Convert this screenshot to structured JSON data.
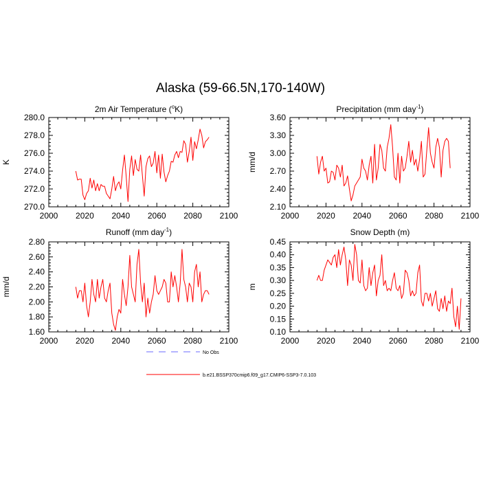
{
  "title": "Alaska (59-66.5N,170-140W)",
  "legend": {
    "obs_label": "No Obs",
    "model_label": "b.e21.BSSP370cmip6.f09_g17.CMIP6-SSP3-7.0.103",
    "obs_color": "#6a6aff",
    "model_color": "#ff0000"
  },
  "chart_data": [
    {
      "type": "line",
      "title_main": "2m Air Temperature (",
      "title_sup": "o",
      "title_tail": "K)",
      "ylabel": "K",
      "xlim": [
        2000,
        2100
      ],
      "ylim": [
        270,
        280
      ],
      "xticks": [
        "2000",
        "2020",
        "2040",
        "2060",
        "2080",
        "2100"
      ],
      "yticks": [
        "270.0",
        "272.0",
        "274.0",
        "276.0",
        "278.0",
        "280.0"
      ],
      "x_start": 2015,
      "series": [
        {
          "name": "b.e21.BSSP370cmip6.f09_g17.CMIP6-SSP3-7.0.103",
          "color": "#ff0000",
          "values": [
            274.0,
            273.0,
            273.1,
            273.1,
            271.3,
            270.8,
            271.5,
            271.8,
            273.2,
            272.1,
            273.0,
            271.8,
            272.6,
            271.8,
            272.5,
            272.3,
            272.3,
            271.5,
            271.2,
            270.9,
            272.0,
            273.4,
            271.8,
            272.5,
            272.8,
            272.0,
            274.1,
            275.8,
            273.4,
            270.6,
            274.2,
            275.7,
            273.5,
            275.3,
            274.2,
            274.0,
            275.8,
            273.5,
            271.2,
            274.5,
            275.4,
            275.7,
            274.5,
            274.9,
            276.2,
            273.8,
            275.8,
            273.2,
            275.9,
            273.9,
            272.8,
            273.5,
            274.0,
            275.1,
            275.0,
            275.8,
            276.2,
            275.5,
            276.2,
            276.1,
            277.4,
            277.0,
            275.0,
            276.2,
            277.8,
            275.2,
            277.3,
            276.5,
            277.5,
            278.7,
            278.0,
            276.6,
            277.3,
            277.5,
            277.8
          ]
        }
      ]
    },
    {
      "type": "line",
      "title_main": "Precipitation (mm day",
      "title_sup": "-1",
      "title_tail": ")",
      "ylabel": "mm/d",
      "xlim": [
        2000,
        2100
      ],
      "ylim": [
        2.1,
        3.6
      ],
      "xticks": [
        "2000",
        "2020",
        "2040",
        "2060",
        "2080",
        "2100"
      ],
      "yticks": [
        "2.10",
        "2.40",
        "2.70",
        "3.00",
        "3.30",
        "3.60"
      ],
      "x_start": 2015,
      "series": [
        {
          "name": "b.e21.BSSP370cmip6.f09_g17.CMIP6-SSP3-7.0.103",
          "color": "#ff0000",
          "values": [
            2.95,
            2.65,
            2.85,
            2.95,
            2.7,
            2.75,
            2.5,
            2.52,
            2.7,
            2.68,
            2.55,
            2.8,
            2.75,
            2.6,
            2.8,
            2.45,
            2.5,
            2.62,
            2.4,
            2.2,
            2.3,
            2.45,
            2.5,
            2.55,
            2.6,
            2.9,
            2.75,
            2.7,
            2.55,
            2.8,
            2.95,
            2.5,
            3.15,
            2.55,
            2.75,
            3.15,
            3.05,
            2.75,
            2.7,
            3.1,
            3.25,
            3.48,
            3.1,
            2.6,
            2.55,
            3.0,
            2.5,
            2.95,
            2.7,
            2.75,
            2.95,
            3.2,
            2.85,
            3.05,
            2.8,
            2.9,
            2.7,
            2.9,
            3.2,
            2.6,
            2.65,
            3.05,
            3.43,
            3.0,
            2.85,
            2.75,
            3.1,
            3.25,
            3.1,
            2.6,
            3.05,
            3.2,
            3.25,
            3.2,
            2.75
          ]
        }
      ]
    },
    {
      "type": "line",
      "title_main": "Runoff (mm day",
      "title_sup": "-1",
      "title_tail": ")",
      "ylabel": "mm/d",
      "xlim": [
        2000,
        2100
      ],
      "ylim": [
        1.6,
        2.8
      ],
      "xticks": [
        "2000",
        "2020",
        "2040",
        "2060",
        "2080",
        "2100"
      ],
      "yticks": [
        "1.60",
        "1.80",
        "2.00",
        "2.20",
        "2.40",
        "2.60",
        "2.80"
      ],
      "x_start": 2015,
      "series": [
        {
          "name": "b.e21.BSSP370cmip6.f09_g17.CMIP6-SSP3-7.0.103",
          "color": "#ff0000",
          "values": [
            2.2,
            2.05,
            2.15,
            2.15,
            2.0,
            2.25,
            1.95,
            1.8,
            2.0,
            2.3,
            2.1,
            2.0,
            2.3,
            2.05,
            2.2,
            2.3,
            2.05,
            2.0,
            2.15,
            2.25,
            1.85,
            1.7,
            1.62,
            1.8,
            1.9,
            1.85,
            2.3,
            2.1,
            1.95,
            2.2,
            2.62,
            2.2,
            2.1,
            2.0,
            2.5,
            2.7,
            2.25,
            2.0,
            2.25,
            1.8,
            2.05,
            1.85,
            2.0,
            2.1,
            2.35,
            2.15,
            2.1,
            2.15,
            2.2,
            2.3,
            2.25,
            2.0,
            2.0,
            2.4,
            2.2,
            2.35,
            2.2,
            2.0,
            2.25,
            2.7,
            2.3,
            2.2,
            2.0,
            2.25,
            2.2,
            2.0,
            2.4,
            2.5,
            2.2,
            2.4,
            2.0,
            2.1,
            2.15,
            2.15,
            2.1
          ]
        }
      ]
    },
    {
      "type": "line",
      "title_main": "Snow Depth (m)",
      "title_sup": "",
      "title_tail": "",
      "ylabel": "m",
      "xlim": [
        2000,
        2100
      ],
      "ylim": [
        0.1,
        0.45
      ],
      "xticks": [
        "2000",
        "2020",
        "2040",
        "2060",
        "2080",
        "2100"
      ],
      "yticks": [
        "0.10",
        "0.15",
        "0.20",
        "0.25",
        "0.30",
        "0.35",
        "0.40",
        "0.45"
      ],
      "x_start": 2015,
      "series": [
        {
          "name": "b.e21.BSSP370cmip6.f09_g17.CMIP6-SSP3-7.0.103",
          "color": "#ff0000",
          "values": [
            0.3,
            0.32,
            0.3,
            0.3,
            0.34,
            0.36,
            0.38,
            0.37,
            0.36,
            0.39,
            0.4,
            0.35,
            0.42,
            0.36,
            0.4,
            0.43,
            0.38,
            0.28,
            0.38,
            0.36,
            0.3,
            0.44,
            0.4,
            0.3,
            0.29,
            0.38,
            0.28,
            0.26,
            0.27,
            0.35,
            0.28,
            0.33,
            0.36,
            0.24,
            0.3,
            0.32,
            0.4,
            0.28,
            0.3,
            0.26,
            0.27,
            0.26,
            0.3,
            0.33,
            0.27,
            0.26,
            0.28,
            0.23,
            0.25,
            0.34,
            0.33,
            0.3,
            0.24,
            0.26,
            0.24,
            0.25,
            0.33,
            0.36,
            0.22,
            0.2,
            0.25,
            0.25,
            0.22,
            0.25,
            0.2,
            0.23,
            0.26,
            0.19,
            0.18,
            0.23,
            0.19,
            0.24,
            0.18,
            0.22,
            0.21,
            0.27,
            0.16,
            0.12,
            0.2,
            0.11,
            0.23
          ]
        }
      ]
    }
  ]
}
